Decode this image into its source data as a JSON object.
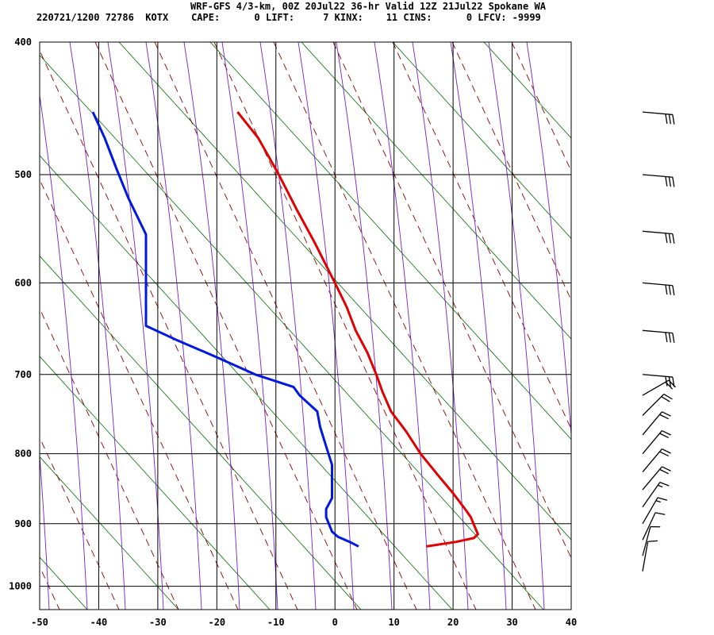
{
  "header": {
    "line1": "WRF-GFS 4/3-km, 00Z 20Jul22 36-hr Valid 12Z 21Jul22 Spokane WA",
    "line2": "220721/1200 72786  KOTX    CAPE:      0 LIFT:     7 KINX:    11 CINS:      0 LFCV: -9999"
  },
  "chart_data": {
    "type": "line",
    "title": "WRF-GFS 4/3-km, 00Z 20Jul22 36-hr Valid 12Z 21Jul22 Spokane WA",
    "xlabel": "",
    "ylabel": "",
    "x_scale": "skew-t",
    "y_scale": "log",
    "xlim": [
      -50,
      40
    ],
    "ylim": [
      1040,
      400
    ],
    "x_ticks": [
      -50,
      -40,
      -30,
      -20,
      -10,
      0,
      10,
      20,
      30,
      40
    ],
    "y_ticks": [
      400,
      500,
      600,
      700,
      800,
      900,
      1000
    ],
    "grid": true,
    "colors": {
      "temperature": "#e00000",
      "dewpoint": "#0018e0",
      "dry_adiabat": "#8b0000",
      "moist_adiabat": "#7a1fc8",
      "mixing_ratio": "#007000"
    },
    "series": [
      {
        "name": "",
        "role": "temperature",
        "points": [
          {
            "p": 935,
            "x": 15.5
          },
          {
            "p": 928,
            "x": 20.5
          },
          {
            "p": 922,
            "x": 23.5
          },
          {
            "p": 916,
            "x": 24.2
          },
          {
            "p": 890,
            "x": 23.0
          },
          {
            "p": 880,
            "x": 22.2
          },
          {
            "p": 855,
            "x": 20.0
          },
          {
            "p": 830,
            "x": 17.5
          },
          {
            "p": 800,
            "x": 14.5
          },
          {
            "p": 770,
            "x": 12.0
          },
          {
            "p": 745,
            "x": 9.5
          },
          {
            "p": 720,
            "x": 8.0
          },
          {
            "p": 700,
            "x": 7.0
          },
          {
            "p": 675,
            "x": 5.5
          },
          {
            "p": 650,
            "x": 3.5
          },
          {
            "p": 625,
            "x": 2.0
          },
          {
            "p": 600,
            "x": 0.0
          },
          {
            "p": 560,
            "x": -3.5
          },
          {
            "p": 530,
            "x": -6.5
          },
          {
            "p": 500,
            "x": -9.5
          },
          {
            "p": 470,
            "x": -13.0
          },
          {
            "p": 450,
            "x": -16.5
          }
        ]
      },
      {
        "name": "",
        "role": "dewpoint",
        "points": [
          {
            "p": 935,
            "x": 4.0
          },
          {
            "p": 928,
            "x": 2.5
          },
          {
            "p": 920,
            "x": 0.5
          },
          {
            "p": 912,
            "x": -0.5
          },
          {
            "p": 890,
            "x": -1.5
          },
          {
            "p": 878,
            "x": -1.5
          },
          {
            "p": 862,
            "x": -0.5
          },
          {
            "p": 840,
            "x": -0.5
          },
          {
            "p": 815,
            "x": -0.5
          },
          {
            "p": 790,
            "x": -1.5
          },
          {
            "p": 765,
            "x": -2.5
          },
          {
            "p": 745,
            "x": -3.0
          },
          {
            "p": 725,
            "x": -6.0
          },
          {
            "p": 715,
            "x": -7.0
          },
          {
            "p": 700,
            "x": -13.5
          },
          {
            "p": 680,
            "x": -20.0
          },
          {
            "p": 660,
            "x": -27.0
          },
          {
            "p": 645,
            "x": -32.0
          },
          {
            "p": 625,
            "x": -32.0
          },
          {
            "p": 600,
            "x": -32.0
          },
          {
            "p": 575,
            "x": -32.0
          },
          {
            "p": 553,
            "x": -32.0
          },
          {
            "p": 520,
            "x": -35.0
          },
          {
            "p": 495,
            "x": -37.0
          },
          {
            "p": 470,
            "x": -39.0
          },
          {
            "p": 450,
            "x": -41.0
          }
        ]
      }
    ],
    "wind_barbs": [
      {
        "p": 450,
        "dir_deg": 275,
        "speed_kt": 30
      },
      {
        "p": 500,
        "dir_deg": 275,
        "speed_kt": 30
      },
      {
        "p": 550,
        "dir_deg": 275,
        "speed_kt": 30
      },
      {
        "p": 600,
        "dir_deg": 275,
        "speed_kt": 30
      },
      {
        "p": 650,
        "dir_deg": 275,
        "speed_kt": 30
      },
      {
        "p": 700,
        "dir_deg": 275,
        "speed_kt": 30
      },
      {
        "p": 725,
        "dir_deg": 240,
        "speed_kt": 20
      },
      {
        "p": 750,
        "dir_deg": 225,
        "speed_kt": 20
      },
      {
        "p": 775,
        "dir_deg": 220,
        "speed_kt": 20
      },
      {
        "p": 800,
        "dir_deg": 220,
        "speed_kt": 20
      },
      {
        "p": 825,
        "dir_deg": 220,
        "speed_kt": 20
      },
      {
        "p": 850,
        "dir_deg": 220,
        "speed_kt": 20
      },
      {
        "p": 875,
        "dir_deg": 215,
        "speed_kt": 15
      },
      {
        "p": 900,
        "dir_deg": 210,
        "speed_kt": 15
      },
      {
        "p": 925,
        "dir_deg": 205,
        "speed_kt": 10
      },
      {
        "p": 950,
        "dir_deg": 195,
        "speed_kt": 10
      },
      {
        "p": 975,
        "dir_deg": 190,
        "speed_kt": 10
      }
    ]
  }
}
